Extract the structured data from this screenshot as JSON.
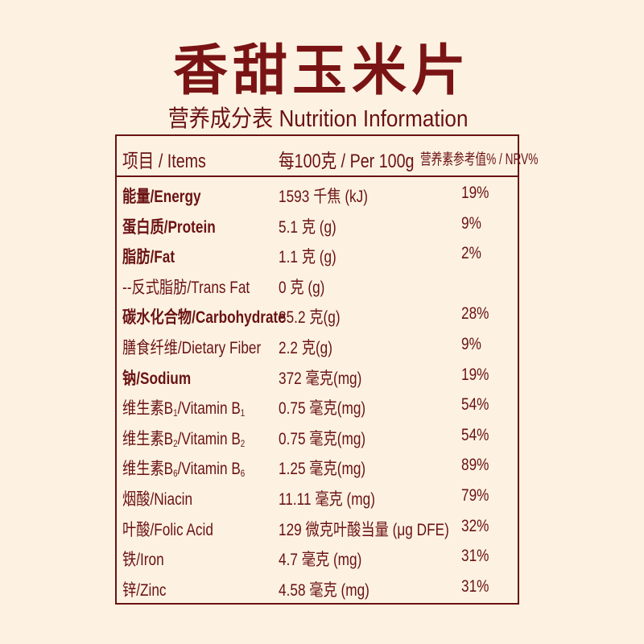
{
  "title": "香甜玉米片",
  "subtitle": "营养成分表 Nutrition Information",
  "colors": {
    "background": "#fdf2e2",
    "text": "#6a1212",
    "title": "#7a1414"
  },
  "table": {
    "headers": [
      "项目 / Items",
      "每100克 / Per 100g",
      "营养素参考值% / NRV%"
    ],
    "rows": [
      {
        "label": [
          {
            "t": "能量/Energy"
          }
        ],
        "bold": true,
        "amount": "1593 千焦 (kJ)",
        "nrv": "19%"
      },
      {
        "label": [
          {
            "t": "蛋白质/Protein"
          }
        ],
        "bold": true,
        "amount": "5.1 克 (g)",
        "nrv": "9%"
      },
      {
        "label": [
          {
            "t": "脂肪/Fat"
          }
        ],
        "bold": true,
        "amount": "1.1 克 (g)",
        "nrv": "2%"
      },
      {
        "label": [
          {
            "t": "--反式脂肪/Trans Fat"
          }
        ],
        "bold": false,
        "amount": "0 克 (g)",
        "nrv": ""
      },
      {
        "label": [
          {
            "t": "碳水化合物/Carbohydrate"
          }
        ],
        "bold": true,
        "amount": "85.2 克(g)",
        "nrv": "28%"
      },
      {
        "label": [
          {
            "t": "膳食纤维/Dietary Fiber"
          }
        ],
        "bold": false,
        "amount": "2.2 克(g)",
        "nrv": "9%"
      },
      {
        "label": [
          {
            "t": "钠/Sodium"
          }
        ],
        "bold": true,
        "amount": "372 毫克(mg)",
        "nrv": "19%"
      },
      {
        "label": [
          {
            "t": "维生素B"
          },
          {
            "t": "1",
            "sub": true
          },
          {
            "t": "/Vitamin B"
          },
          {
            "t": "1",
            "sub": true
          }
        ],
        "bold": false,
        "amount": "0.75 毫克(mg)",
        "nrv": "54%"
      },
      {
        "label": [
          {
            "t": "维生素B"
          },
          {
            "t": "2",
            "sub": true
          },
          {
            "t": "/Vitamin B"
          },
          {
            "t": "2",
            "sub": true
          }
        ],
        "bold": false,
        "amount": "0.75 毫克(mg)",
        "nrv": "54%"
      },
      {
        "label": [
          {
            "t": "维生素B"
          },
          {
            "t": "6",
            "sub": true
          },
          {
            "t": "/Vitamin B"
          },
          {
            "t": "6",
            "sub": true
          }
        ],
        "bold": false,
        "amount": "1.25 毫克(mg)",
        "nrv": "89%"
      },
      {
        "label": [
          {
            "t": "烟酸/Niacin"
          }
        ],
        "bold": false,
        "amount": "11.11 毫克 (mg)",
        "nrv": "79%"
      },
      {
        "label": [
          {
            "t": "叶酸/Folic Acid"
          }
        ],
        "bold": false,
        "amount": "129 微克叶酸当量 (μg DFE)",
        "nrv": "32%"
      },
      {
        "label": [
          {
            "t": "铁/Iron"
          }
        ],
        "bold": false,
        "amount": "4.7 毫克 (mg)",
        "nrv": "31%"
      },
      {
        "label": [
          {
            "t": "锌/Zinc"
          }
        ],
        "bold": false,
        "amount": "4.58 毫克 (mg)",
        "nrv": "31%"
      }
    ]
  }
}
